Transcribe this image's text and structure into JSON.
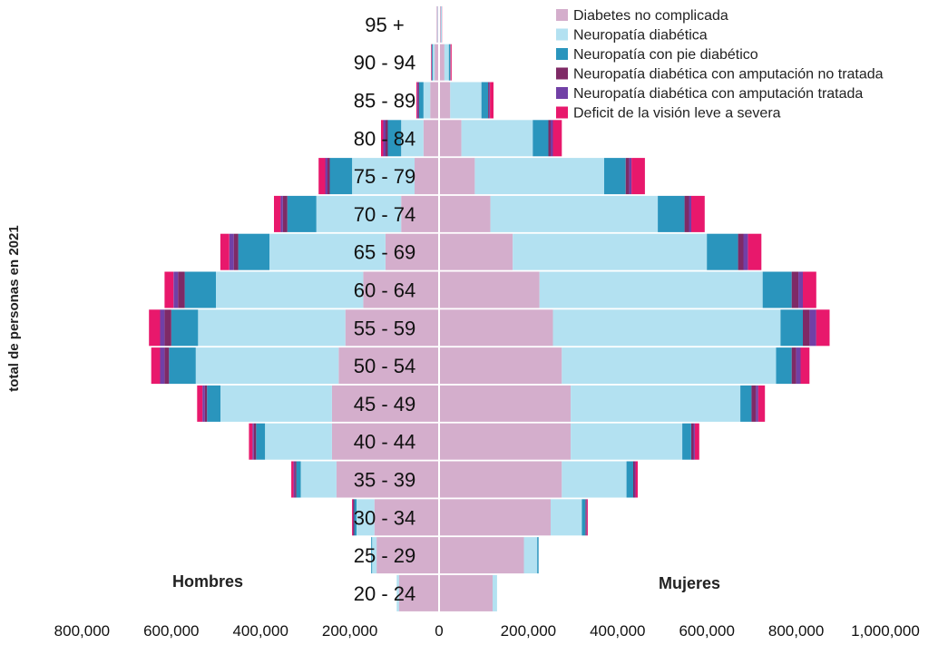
{
  "chart_data": {
    "type": "bar",
    "orientation": "horizontal",
    "stacked": true,
    "diverging": true,
    "ylabel": "total de personas en 2021",
    "xlabel": "",
    "xlim": [
      -800000,
      1000000
    ],
    "x_ticks": [
      -800000,
      -600000,
      -400000,
      -200000,
      0,
      200000,
      400000,
      600000,
      800000,
      1000000
    ],
    "x_tick_labels": [
      "800,000",
      "600,000",
      "400,000",
      "200,000",
      "0",
      "200,000",
      "400,000",
      "600,000",
      "800,000",
      "1,000,000"
    ],
    "side_labels": {
      "left": "Hombres",
      "right": "Mujeres"
    },
    "categories": [
      "20 - 24",
      "25 - 29",
      "30 - 34",
      "35 - 39",
      "40 - 44",
      "45 - 49",
      "50 - 54",
      "55 - 59",
      "60 - 64",
      "65 - 69",
      "70 - 74",
      "75 - 79",
      "80 - 84",
      "85 - 89",
      "90 - 94",
      "95 +"
    ],
    "legend_position": "top-right",
    "colors": {
      "Diabetes no complicada": "#d4aecc",
      "Neuropatía diabética": "#b3e1f1",
      "Neuropatía con pie diabético": "#2a95bd",
      "Neuropatía diabética con amputación no tratada": "#7f2a66",
      "Neuropatía diabética con amputación tratada": "#7140a6",
      "Deficit de la visión leve a severa": "#e8186c"
    },
    "series": [
      {
        "name": "Diabetes no complicada",
        "male": [
          90000,
          140000,
          145000,
          230000,
          240000,
          240000,
          225000,
          210000,
          170000,
          120000,
          85000,
          55000,
          35000,
          20000,
          10000,
          3000
        ],
        "female": [
          120000,
          190000,
          250000,
          275000,
          295000,
          295000,
          275000,
          255000,
          225000,
          165000,
          115000,
          80000,
          50000,
          25000,
          12000,
          4000
        ]
      },
      {
        "name": "Neuropatía diabética",
        "male": [
          5000,
          10000,
          40000,
          80000,
          150000,
          250000,
          320000,
          330000,
          330000,
          260000,
          190000,
          140000,
          50000,
          15000,
          4000,
          1000
        ],
        "female": [
          10000,
          30000,
          70000,
          145000,
          250000,
          380000,
          480000,
          510000,
          500000,
          435000,
          375000,
          290000,
          160000,
          70000,
          10000,
          1500
        ]
      },
      {
        "name": "Neuropatía con pie diabético",
        "male": [
          0,
          2000,
          5000,
          10000,
          20000,
          30000,
          60000,
          60000,
          70000,
          70000,
          65000,
          50000,
          30000,
          10000,
          2000,
          500
        ],
        "female": [
          0,
          3000,
          8000,
          15000,
          20000,
          25000,
          35000,
          50000,
          65000,
          70000,
          60000,
          48000,
          35000,
          15000,
          3000,
          500
        ]
      },
      {
        "name": "Neuropatía diabética con amputación no tratada",
        "male": [
          0,
          0,
          2000,
          3000,
          5000,
          5000,
          10000,
          15000,
          15000,
          10000,
          10000,
          5000,
          5000,
          2000,
          500,
          0
        ],
        "female": [
          0,
          0,
          2000,
          3000,
          5000,
          10000,
          10000,
          15000,
          15000,
          12000,
          10000,
          8000,
          5000,
          2000,
          500,
          0
        ]
      },
      {
        "name": "Neuropatía diabética con amputación tratada",
        "male": [
          0,
          0,
          1000,
          3000,
          3000,
          5000,
          10000,
          10000,
          10000,
          10000,
          5000,
          5000,
          5000,
          2000,
          500,
          0
        ],
        "female": [
          0,
          0,
          1000,
          2000,
          3000,
          5000,
          10000,
          15000,
          10000,
          10000,
          5000,
          5000,
          5000,
          2000,
          500,
          0
        ]
      },
      {
        "name": "Deficit de la visión leve a severa",
        "male": [
          0,
          0,
          2000,
          5000,
          8000,
          12000,
          20000,
          25000,
          20000,
          20000,
          15000,
          15000,
          5000,
          2000,
          1000,
          500
        ],
        "female": [
          0,
          0,
          2000,
          5000,
          10000,
          15000,
          20000,
          30000,
          30000,
          30000,
          30000,
          30000,
          20000,
          8000,
          2000,
          500
        ]
      }
    ]
  }
}
